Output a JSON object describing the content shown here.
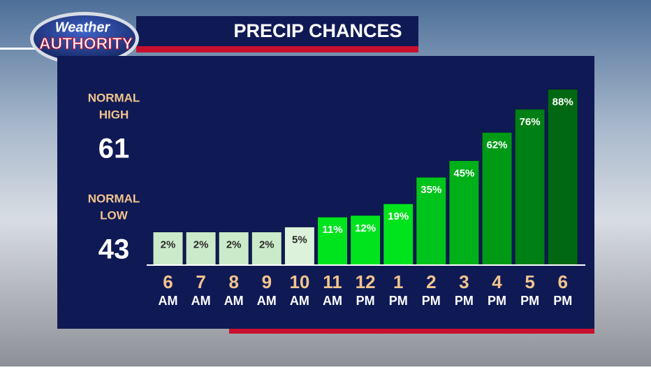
{
  "chart_data": {
    "type": "bar",
    "title": "PRECIP CHANCES",
    "logo": [
      "Weather",
      "AUTHORITY"
    ],
    "normals": [
      {
        "label": [
          "NORMAL",
          "HIGH"
        ],
        "value": 61
      },
      {
        "label": [
          "NORMAL",
          "LOW"
        ],
        "value": 43
      }
    ],
    "categories": [
      [
        "6",
        "AM"
      ],
      [
        "7",
        "AM"
      ],
      [
        "8",
        "AM"
      ],
      [
        "9",
        "AM"
      ],
      [
        "10",
        "AM"
      ],
      [
        "11",
        "AM"
      ],
      [
        "12",
        "PM"
      ],
      [
        "1",
        "PM"
      ],
      [
        "2",
        "PM"
      ],
      [
        "3",
        "PM"
      ],
      [
        "4",
        "PM"
      ],
      [
        "5",
        "PM"
      ],
      [
        "6",
        "PM"
      ]
    ],
    "values": [
      2,
      2,
      2,
      2,
      5,
      11,
      12,
      19,
      35,
      45,
      62,
      76,
      88
    ],
    "value_labels": [
      "2%",
      "2%",
      "2%",
      "2%",
      "5%",
      "11%",
      "12%",
      "19%",
      "35%",
      "45%",
      "62%",
      "76%",
      "88%"
    ],
    "colors": [
      "#cbeac9",
      "#cbeac9",
      "#cbeac9",
      "#cbeac9",
      "#dcf2da",
      "#00e41e",
      "#00e41e",
      "#00e41e",
      "#00c41b",
      "#00b019",
      "#009a16",
      "#007f14",
      "#006812"
    ],
    "ylim": [
      -18,
      100
    ]
  }
}
